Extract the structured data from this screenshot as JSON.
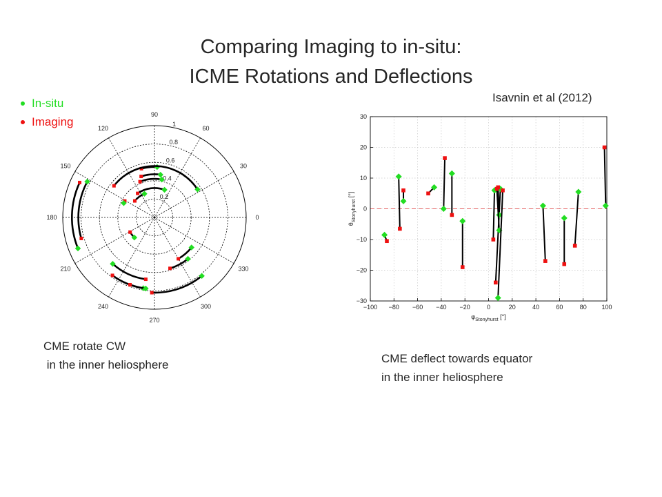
{
  "slide": {
    "title_line1": "Comparing Imaging to in-situ:",
    "title_line2": "ICME Rotations and Deflections",
    "legend": [
      {
        "label": "In-situ",
        "color": "#22dd22"
      },
      {
        "label": "Imaging",
        "color": "#ee1111"
      }
    ],
    "citation": "Isavnin et al (2012)",
    "caption_left": [
      "CME rotate CW",
      " in the inner heliosphere"
    ],
    "caption_right": [
      "CME deflect towards equator",
      "in the inner heliosphere"
    ]
  },
  "colors": {
    "in_situ": "#22dd22",
    "imaging": "#ee1111",
    "arc": "#000000",
    "zero_line": "#e35a5a"
  },
  "chart_data": [
    {
      "type": "polar",
      "angle_ticks": [
        "0",
        "30",
        "60",
        "90",
        "120",
        "150",
        "180",
        "210",
        "240",
        "270",
        "300",
        "330"
      ],
      "radius_ticks": [
        "0.2",
        "0.4",
        "0.6",
        "0.8",
        "1"
      ],
      "rlim": [
        0,
        1
      ],
      "series": [
        {
          "in_situ": [
            0.55,
            87
          ],
          "imaging": [
            0.55,
            105
          ]
        },
        {
          "in_situ": [
            0.47,
            82
          ],
          "imaging": [
            0.47,
            108
          ]
        },
        {
          "in_situ": [
            0.42,
            79
          ],
          "imaging": [
            0.42,
            112
          ]
        },
        {
          "in_situ": [
            0.32,
            70
          ],
          "imaging": [
            0.32,
            125
          ]
        },
        {
          "in_situ": [
            0.56,
            33
          ],
          "imaging": [
            0.56,
            142
          ]
        },
        {
          "in_situ": [
            0.83,
            152
          ],
          "imaging": [
            0.83,
            196
          ]
        },
        {
          "in_situ": [
            0.9,
            202
          ],
          "imaging": [
            0.9,
            155
          ]
        },
        {
          "in_situ": [
            0.28,
            113
          ],
          "imaging": [
            0.28,
            140
          ]
        },
        {
          "in_situ": [
            0.37,
            155
          ],
          "imaging": [
            0.37,
            151
          ]
        },
        {
          "in_situ": [
            0.31,
            225
          ],
          "imaging": [
            0.31,
            211
          ]
        },
        {
          "in_situ": [
            0.58,
            309
          ],
          "imaging": [
            0.58,
            287
          ]
        },
        {
          "in_situ": [
            0.52,
            321
          ],
          "imaging": [
            0.52,
            300
          ]
        },
        {
          "in_situ": [
            0.68,
            228
          ],
          "imaging": [
            0.68,
            262
          ]
        },
        {
          "in_situ": [
            0.78,
            261
          ],
          "imaging": [
            0.78,
            234
          ]
        },
        {
          "in_situ": [
            0.78,
            263
          ],
          "imaging": [
            0.78,
            250
          ]
        },
        {
          "in_situ": [
            0.82,
            309
          ],
          "imaging": [
            0.82,
            268
          ]
        }
      ]
    },
    {
      "type": "scatter",
      "xlabel": "φStonyhurst [°]",
      "ylabel": "θStonyhurst [°]",
      "xlim": [
        -100,
        100
      ],
      "ylim": [
        -30,
        30
      ],
      "xticks": [
        -100,
        -80,
        -60,
        -40,
        -20,
        0,
        20,
        40,
        60,
        80,
        100
      ],
      "yticks": [
        -30,
        -20,
        -10,
        0,
        10,
        20,
        30
      ],
      "grid": true,
      "zero_line": true,
      "pairs": [
        {
          "in_situ": [
            -88,
            -8.5
          ],
          "imaging": [
            -86,
            -10.5
          ]
        },
        {
          "in_situ": [
            -76,
            10.5
          ],
          "imaging": [
            -75,
            -6.5
          ]
        },
        {
          "in_situ": [
            -72,
            2.5
          ],
          "imaging": [
            -72,
            6
          ]
        },
        {
          "in_situ": [
            -46,
            7
          ],
          "imaging": [
            -51,
            5
          ]
        },
        {
          "in_situ": [
            -38,
            0
          ],
          "imaging": [
            -37,
            16.5
          ]
        },
        {
          "in_situ": [
            -31,
            11.5
          ],
          "imaging": [
            -31,
            -2
          ]
        },
        {
          "in_situ": [
            -22,
            -4
          ],
          "imaging": [
            -22,
            -19
          ]
        },
        {
          "in_situ": [
            5,
            6
          ],
          "imaging": [
            4,
            -10
          ]
        },
        {
          "in_situ": [
            10,
            6.5
          ],
          "imaging": [
            6,
            -24
          ]
        },
        {
          "in_situ": [
            9,
            -2
          ],
          "imaging": [
            8,
            7
          ]
        },
        {
          "in_situ": [
            9,
            -7
          ],
          "imaging": [
            7,
            6.5
          ]
        },
        {
          "in_situ": [
            8,
            -29
          ],
          "imaging": [
            12,
            6
          ]
        },
        {
          "in_situ": [
            46,
            1
          ],
          "imaging": [
            48,
            -17
          ]
        },
        {
          "in_situ": [
            64,
            -3
          ],
          "imaging": [
            64,
            -18
          ]
        },
        {
          "in_situ": [
            76,
            5.5
          ],
          "imaging": [
            73,
            -12
          ]
        },
        {
          "in_situ": [
            99,
            1
          ],
          "imaging": [
            98,
            20
          ]
        }
      ]
    }
  ]
}
